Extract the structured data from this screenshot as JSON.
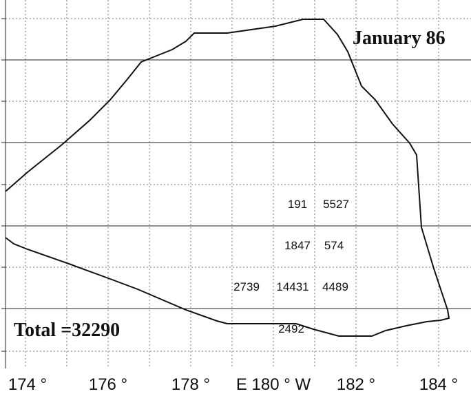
{
  "title": "January 86",
  "total": "Total =32290",
  "cells": [
    191,
    5527,
    1847,
    574,
    2739,
    14431,
    4489,
    2492
  ],
  "x_axis_labels": [
    "174 °",
    "176 °",
    "178 °",
    "E 180 ° W",
    "182 °",
    "184 °"
  ]
}
